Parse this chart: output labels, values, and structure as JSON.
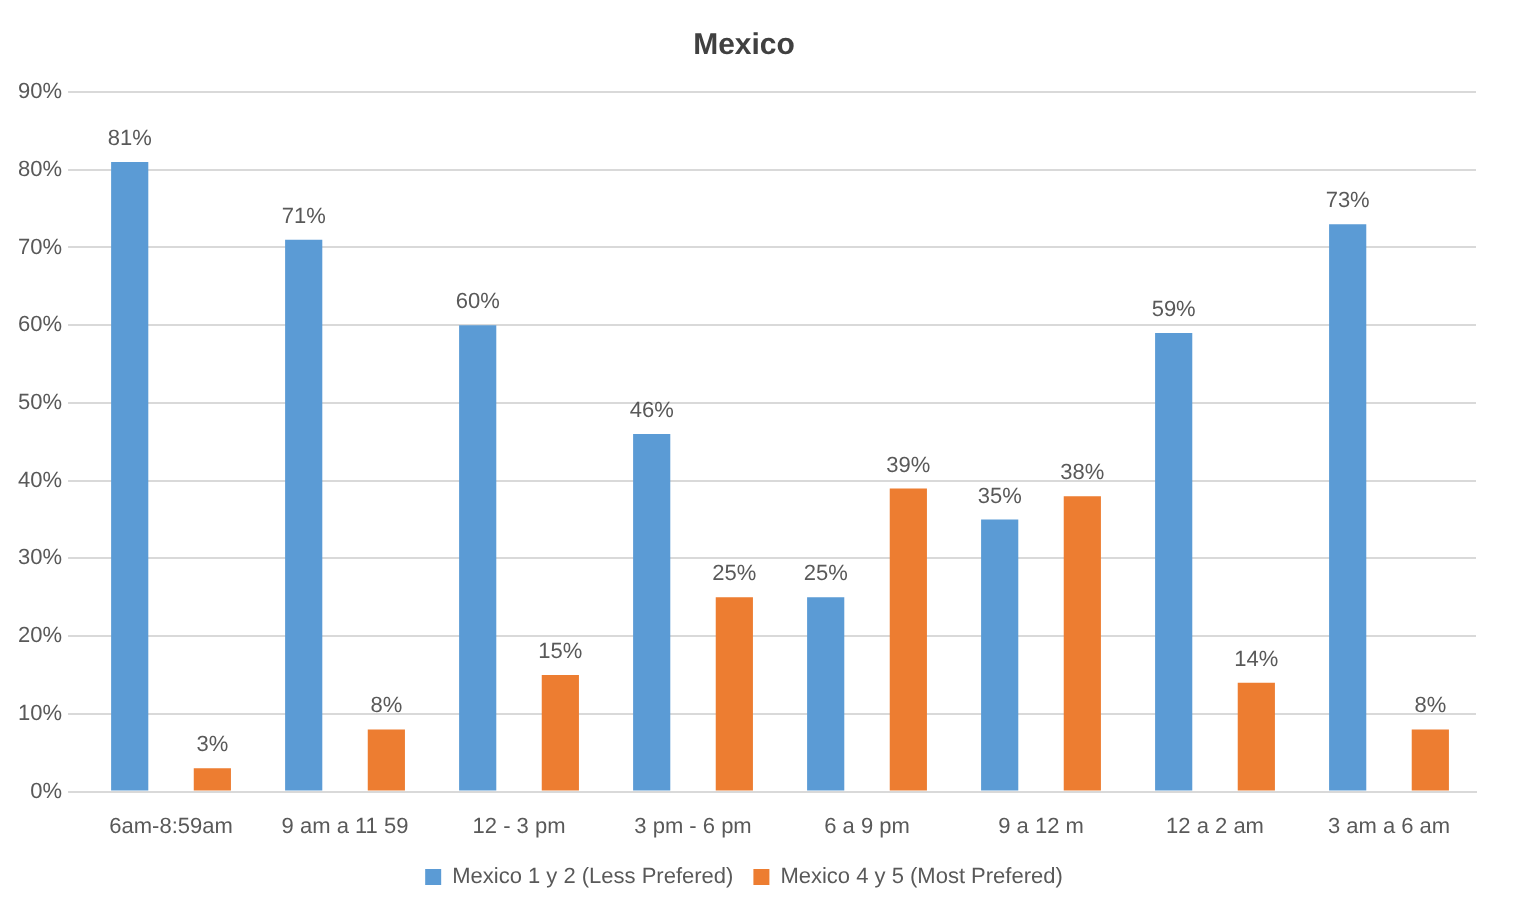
{
  "chart_data": {
    "type": "bar",
    "title": "Mexico",
    "categories": [
      "6am-8:59am",
      "9 am a 11 59",
      "12 - 3 pm",
      "3 pm - 6 pm",
      "6 a 9 pm",
      "9 a 12 m",
      "12 a 2 am",
      "3 am a 6 am"
    ],
    "series": [
      {
        "name": "Mexico 1 y 2 (Less Prefered)",
        "color": "#5b9bd5",
        "values": [
          81,
          71,
          60,
          46,
          25,
          35,
          59,
          73
        ],
        "value_labels": [
          "81%",
          "71%",
          "60%",
          "46%",
          "25%",
          "35%",
          "59%",
          "73%"
        ]
      },
      {
        "name": "Mexico 4 y 5 (Most Prefered)",
        "color": "#ed7d31",
        "values": [
          3,
          8,
          15,
          25,
          39,
          38,
          14,
          8
        ],
        "value_labels": [
          "3%",
          "8%",
          "15%",
          "25%",
          "39%",
          "38%",
          "14%",
          "8%"
        ]
      }
    ],
    "ylim": [
      0,
      90
    ],
    "yticks": [
      {
        "value": 0,
        "label": "0%"
      },
      {
        "value": 10,
        "label": "10%"
      },
      {
        "value": 20,
        "label": "20%"
      },
      {
        "value": 30,
        "label": "30%"
      },
      {
        "value": 40,
        "label": "40%"
      },
      {
        "value": 50,
        "label": "50%"
      },
      {
        "value": 60,
        "label": "60%"
      },
      {
        "value": 70,
        "label": "70%"
      },
      {
        "value": 80,
        "label": "80%"
      },
      {
        "value": 90,
        "label": "90%"
      }
    ],
    "grid": "y",
    "legend": "bottom"
  }
}
